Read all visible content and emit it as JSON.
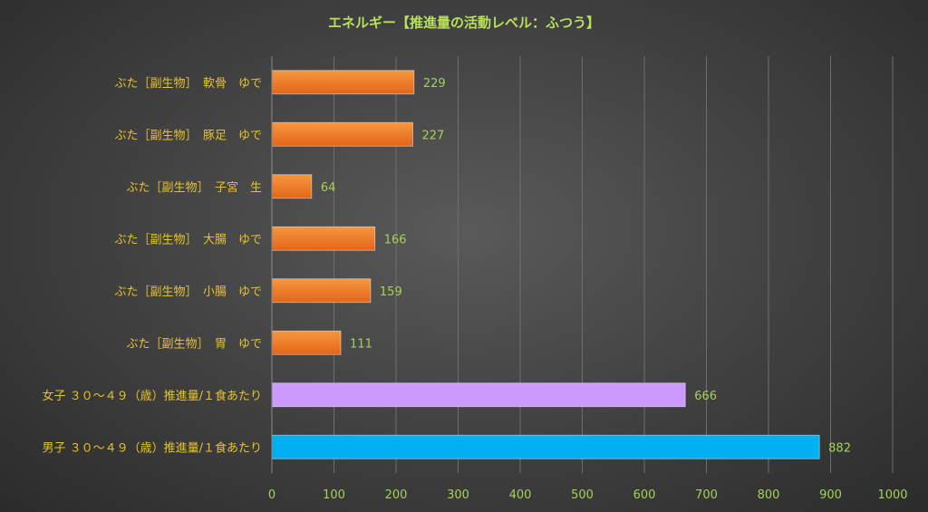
{
  "chart_data": {
    "type": "bar",
    "orientation": "horizontal",
    "title": "エネルギー【推進量の活動レベル：ふつう】",
    "categories": [
      "ぶた［副生物］　軟骨　ゆで",
      "ぶた［副生物］　豚足　ゆで",
      "ぶた［副生物］　子宮　生",
      "ぶた［副生物］　大腸　ゆで",
      "ぶた［副生物］　小腸　ゆで",
      "ぶた［副生物］　胃　ゆで",
      "女子 ３０～４９（歳）推進量/１食あたり",
      "男子 ３０～４９（歳）推進量/１食あたり"
    ],
    "values": [
      229,
      227,
      64,
      166,
      159,
      111,
      666,
      882
    ],
    "data_labels": [
      "229",
      "227",
      "64",
      "166",
      "159",
      "111",
      "666",
      "882"
    ],
    "bar_colors": [
      "#f07a2a",
      "#f07a2a",
      "#f07a2a",
      "#f07a2a",
      "#f07a2a",
      "#f07a2a",
      "#cc99ff",
      "#00b0f0"
    ],
    "xlim": [
      0,
      1000
    ],
    "x_ticks": [
      "0",
      "100",
      "200",
      "300",
      "400",
      "500",
      "600",
      "700",
      "800",
      "900",
      "1000"
    ],
    "grid": true,
    "legend": "none",
    "colors": {
      "title": "#b8e05a",
      "category_label": "#e6c22e",
      "tick_label": "#a6d05a",
      "data_label": "#a6d05a"
    }
  }
}
